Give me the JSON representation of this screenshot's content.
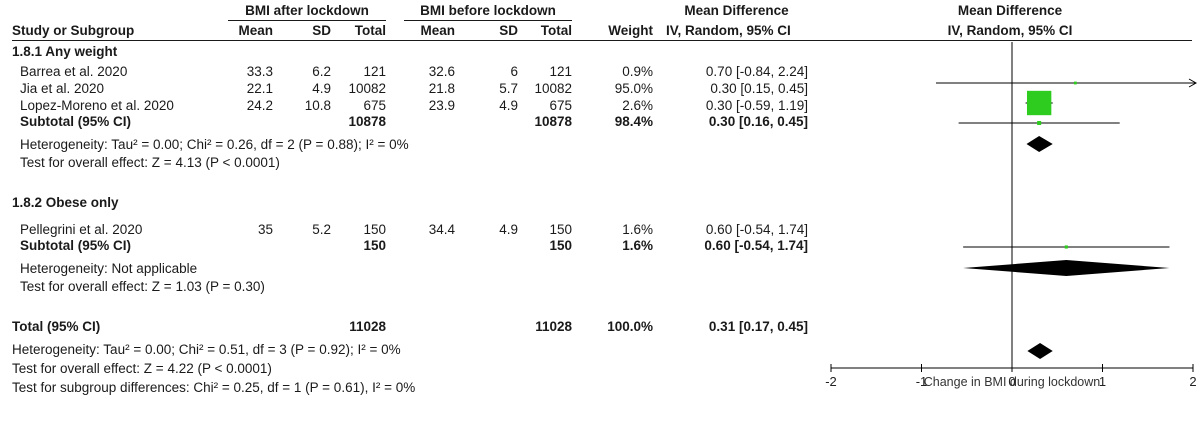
{
  "header": {
    "group_after": "BMI after lockdown",
    "group_before": "BMI before lockdown",
    "md_title": "Mean Difference",
    "plot_title": "Mean Difference",
    "study_col": "Study or Subgroup",
    "mean1": "Mean",
    "sd1": "SD",
    "total1": "Total",
    "mean2": "Mean",
    "sd2": "SD",
    "total2": "Total",
    "weight": "Weight",
    "method": "IV, Random, 95% CI",
    "plot_method": "IV, Random, 95% CI"
  },
  "subgroups": [
    {
      "title": "1.8.1 Any weight",
      "studies": [
        {
          "name": "Barrea et al. 2020",
          "m1": "33.3",
          "sd1": "6.2",
          "n1": "121",
          "m2": "32.6",
          "sd2": "6",
          "n2": "121",
          "w": "0.9%",
          "ci": "0.70 [-0.84, 2.24]"
        },
        {
          "name": "Jia et al. 2020",
          "m1": "22.1",
          "sd1": "4.9",
          "n1": "10082",
          "m2": "21.8",
          "sd2": "5.7",
          "n2": "10082",
          "w": "95.0%",
          "ci": "0.30 [0.15, 0.45]"
        },
        {
          "name": "Lopez-Moreno et al. 2020",
          "m1": "24.2",
          "sd1": "10.8",
          "n1": "675",
          "m2": "23.9",
          "sd2": "4.9",
          "n2": "675",
          "w": "2.6%",
          "ci": "0.30 [-0.59, 1.19]"
        }
      ],
      "subtotal": {
        "label": "Subtotal (95% CI)",
        "n1": "10878",
        "n2": "10878",
        "w": "98.4%",
        "ci": "0.30 [0.16, 0.45]"
      },
      "heterogeneity": "Heterogeneity: Tau² = 0.00; Chi² = 0.26, df = 2 (P = 0.88); I² = 0%",
      "overall": "Test for overall effect: Z = 4.13 (P < 0.0001)"
    },
    {
      "title": "1.8.2 Obese only",
      "studies": [
        {
          "name": "Pellegrini et al. 2020",
          "m1": "35",
          "sd1": "5.2",
          "n1": "150",
          "m2": "34.4",
          "sd2": "4.9",
          "n2": "150",
          "w": "1.6%",
          "ci": "0.60 [-0.54, 1.74]"
        }
      ],
      "subtotal": {
        "label": "Subtotal (95% CI)",
        "n1": "150",
        "n2": "150",
        "w": "1.6%",
        "ci": "0.60 [-0.54, 1.74]"
      },
      "heterogeneity": "Heterogeneity: Not applicable",
      "overall": "Test for overall effect: Z = 1.03 (P = 0.30)"
    }
  ],
  "total": {
    "label": "Total (95% CI)",
    "n1": "11028",
    "n2": "11028",
    "w": "100.0%",
    "ci": "0.31 [0.17, 0.45]",
    "heterogeneity": "Heterogeneity: Tau² = 0.00; Chi² = 0.51, df = 3 (P = 0.92); I² = 0%",
    "overall": "Test for overall effect: Z = 4.22 (P < 0.0001)",
    "subgroup_diff": "Test for subgroup differences: Chi² = 0.25, df = 1 (P = 0.61), I² = 0%"
  },
  "chart_data": {
    "type": "forest",
    "xlabel": "Change in BMI during lockdown",
    "xlim": [
      -2,
      2
    ],
    "ticks": [
      -2,
      -1,
      0,
      1,
      2
    ],
    "tick_labels": [
      "-2",
      "-1",
      "0",
      "1",
      "2"
    ],
    "colors": {
      "square": "#2ecc1f",
      "diamond": "#000000",
      "line": "#000000"
    },
    "studies": [
      {
        "name": "Barrea et al. 2020",
        "md": 0.7,
        "lo": -0.84,
        "hi": 2.24,
        "weight": 0.9,
        "arrow_right": true
      },
      {
        "name": "Jia et al. 2020",
        "md": 0.3,
        "lo": 0.15,
        "hi": 0.45,
        "weight": 95.0
      },
      {
        "name": "Lopez-Moreno et al. 2020",
        "md": 0.3,
        "lo": -0.59,
        "hi": 1.19,
        "weight": 2.6
      },
      {
        "name": "Pellegrini et al. 2020",
        "md": 0.6,
        "lo": -0.54,
        "hi": 1.74,
        "weight": 1.6
      }
    ],
    "diamonds": [
      {
        "name": "Subtotal 1.8.1",
        "md": 0.3,
        "lo": 0.16,
        "hi": 0.45
      },
      {
        "name": "Subtotal 1.8.2",
        "md": 0.6,
        "lo": -0.54,
        "hi": 1.74
      },
      {
        "name": "Total",
        "md": 0.31,
        "lo": 0.17,
        "hi": 0.45
      }
    ]
  }
}
